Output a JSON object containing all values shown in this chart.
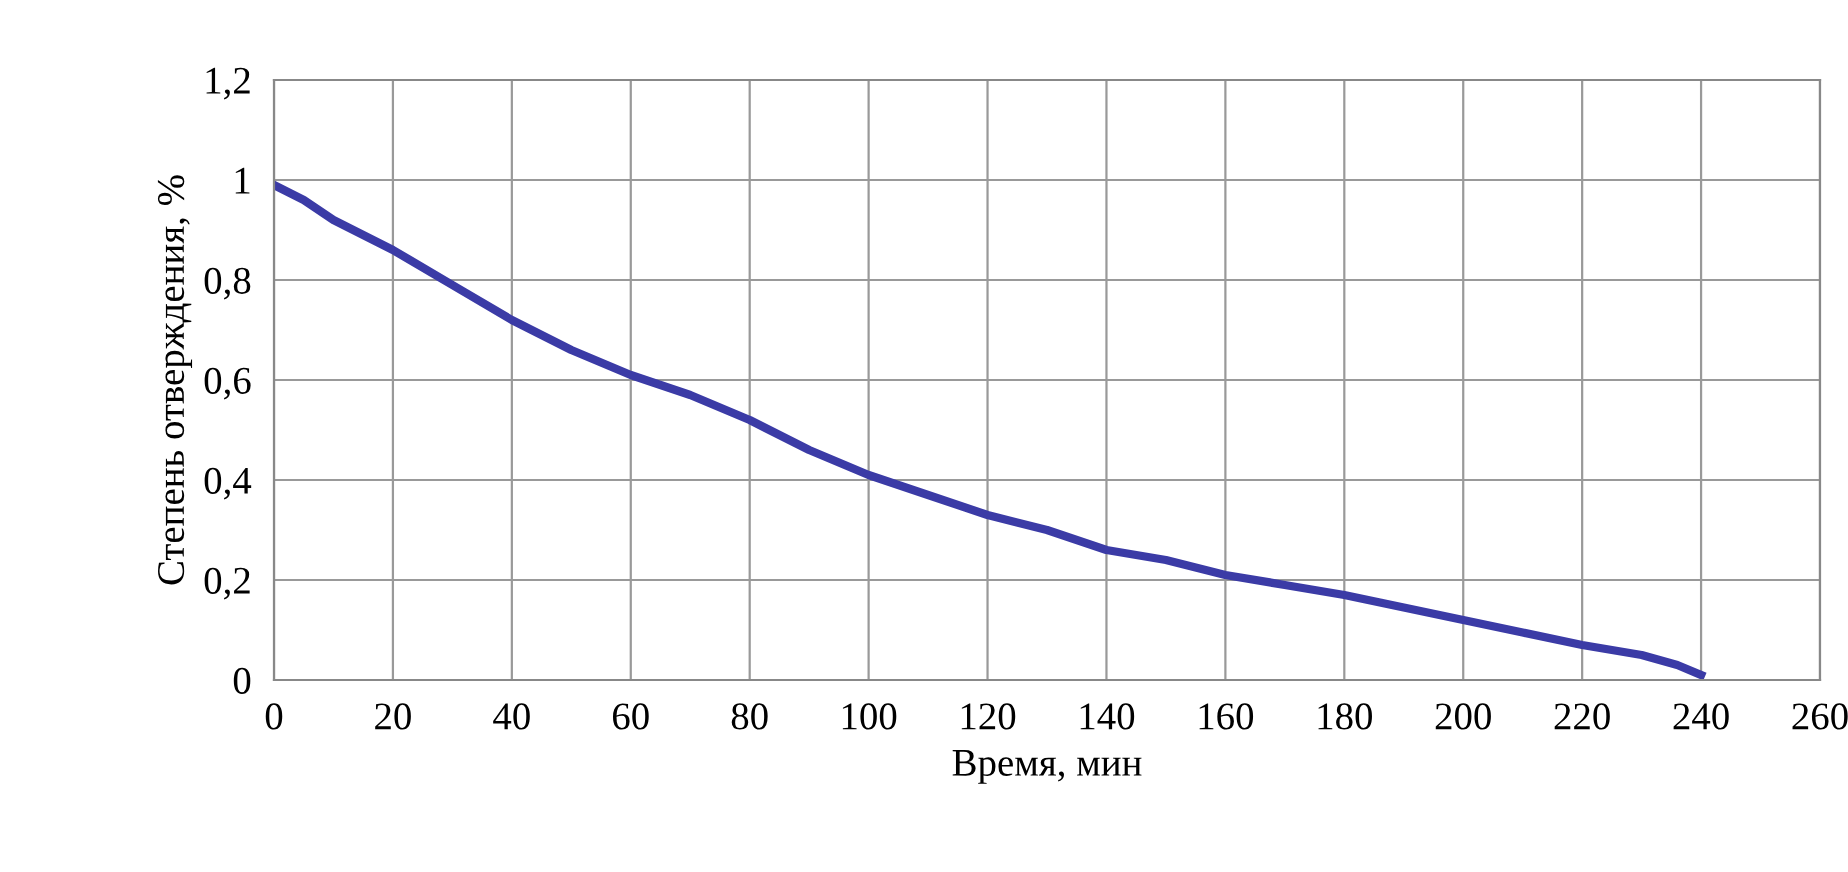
{
  "chart_data": {
    "type": "line",
    "xlabel": "Время, мин",
    "ylabel": "Степень отверждения, %",
    "x": [
      0,
      5,
      10,
      20,
      30,
      40,
      50,
      60,
      70,
      80,
      90,
      100,
      110,
      120,
      130,
      140,
      150,
      160,
      170,
      180,
      190,
      200,
      210,
      220,
      230,
      236,
      240
    ],
    "series": [
      {
        "color": "#3b3ba6",
        "values": [
          0.99,
          0.96,
          0.92,
          0.86,
          0.79,
          0.72,
          0.66,
          0.61,
          0.57,
          0.52,
          0.46,
          0.41,
          0.37,
          0.33,
          0.3,
          0.26,
          0.24,
          0.21,
          0.19,
          0.17,
          0.145,
          0.12,
          0.095,
          0.07,
          0.05,
          0.03,
          0.01
        ]
      }
    ],
    "xlim": [
      0,
      260
    ],
    "xticks": [
      0,
      20,
      40,
      60,
      80,
      100,
      120,
      140,
      160,
      180,
      200,
      220,
      240,
      260
    ],
    "ylim": [
      0,
      1.2
    ],
    "yticks": [
      0,
      {
        "value": 0.2,
        "label": "0,2"
      },
      {
        "value": 0.4,
        "label": "0,4"
      },
      {
        "value": 0.6,
        "label": "0,6"
      },
      {
        "value": 0.8,
        "label": "0,8"
      },
      1,
      {
        "value": 1.2,
        "label": "1,2"
      }
    ],
    "grid": true,
    "legend": false,
    "marker": "none",
    "line_style": "solid"
  }
}
